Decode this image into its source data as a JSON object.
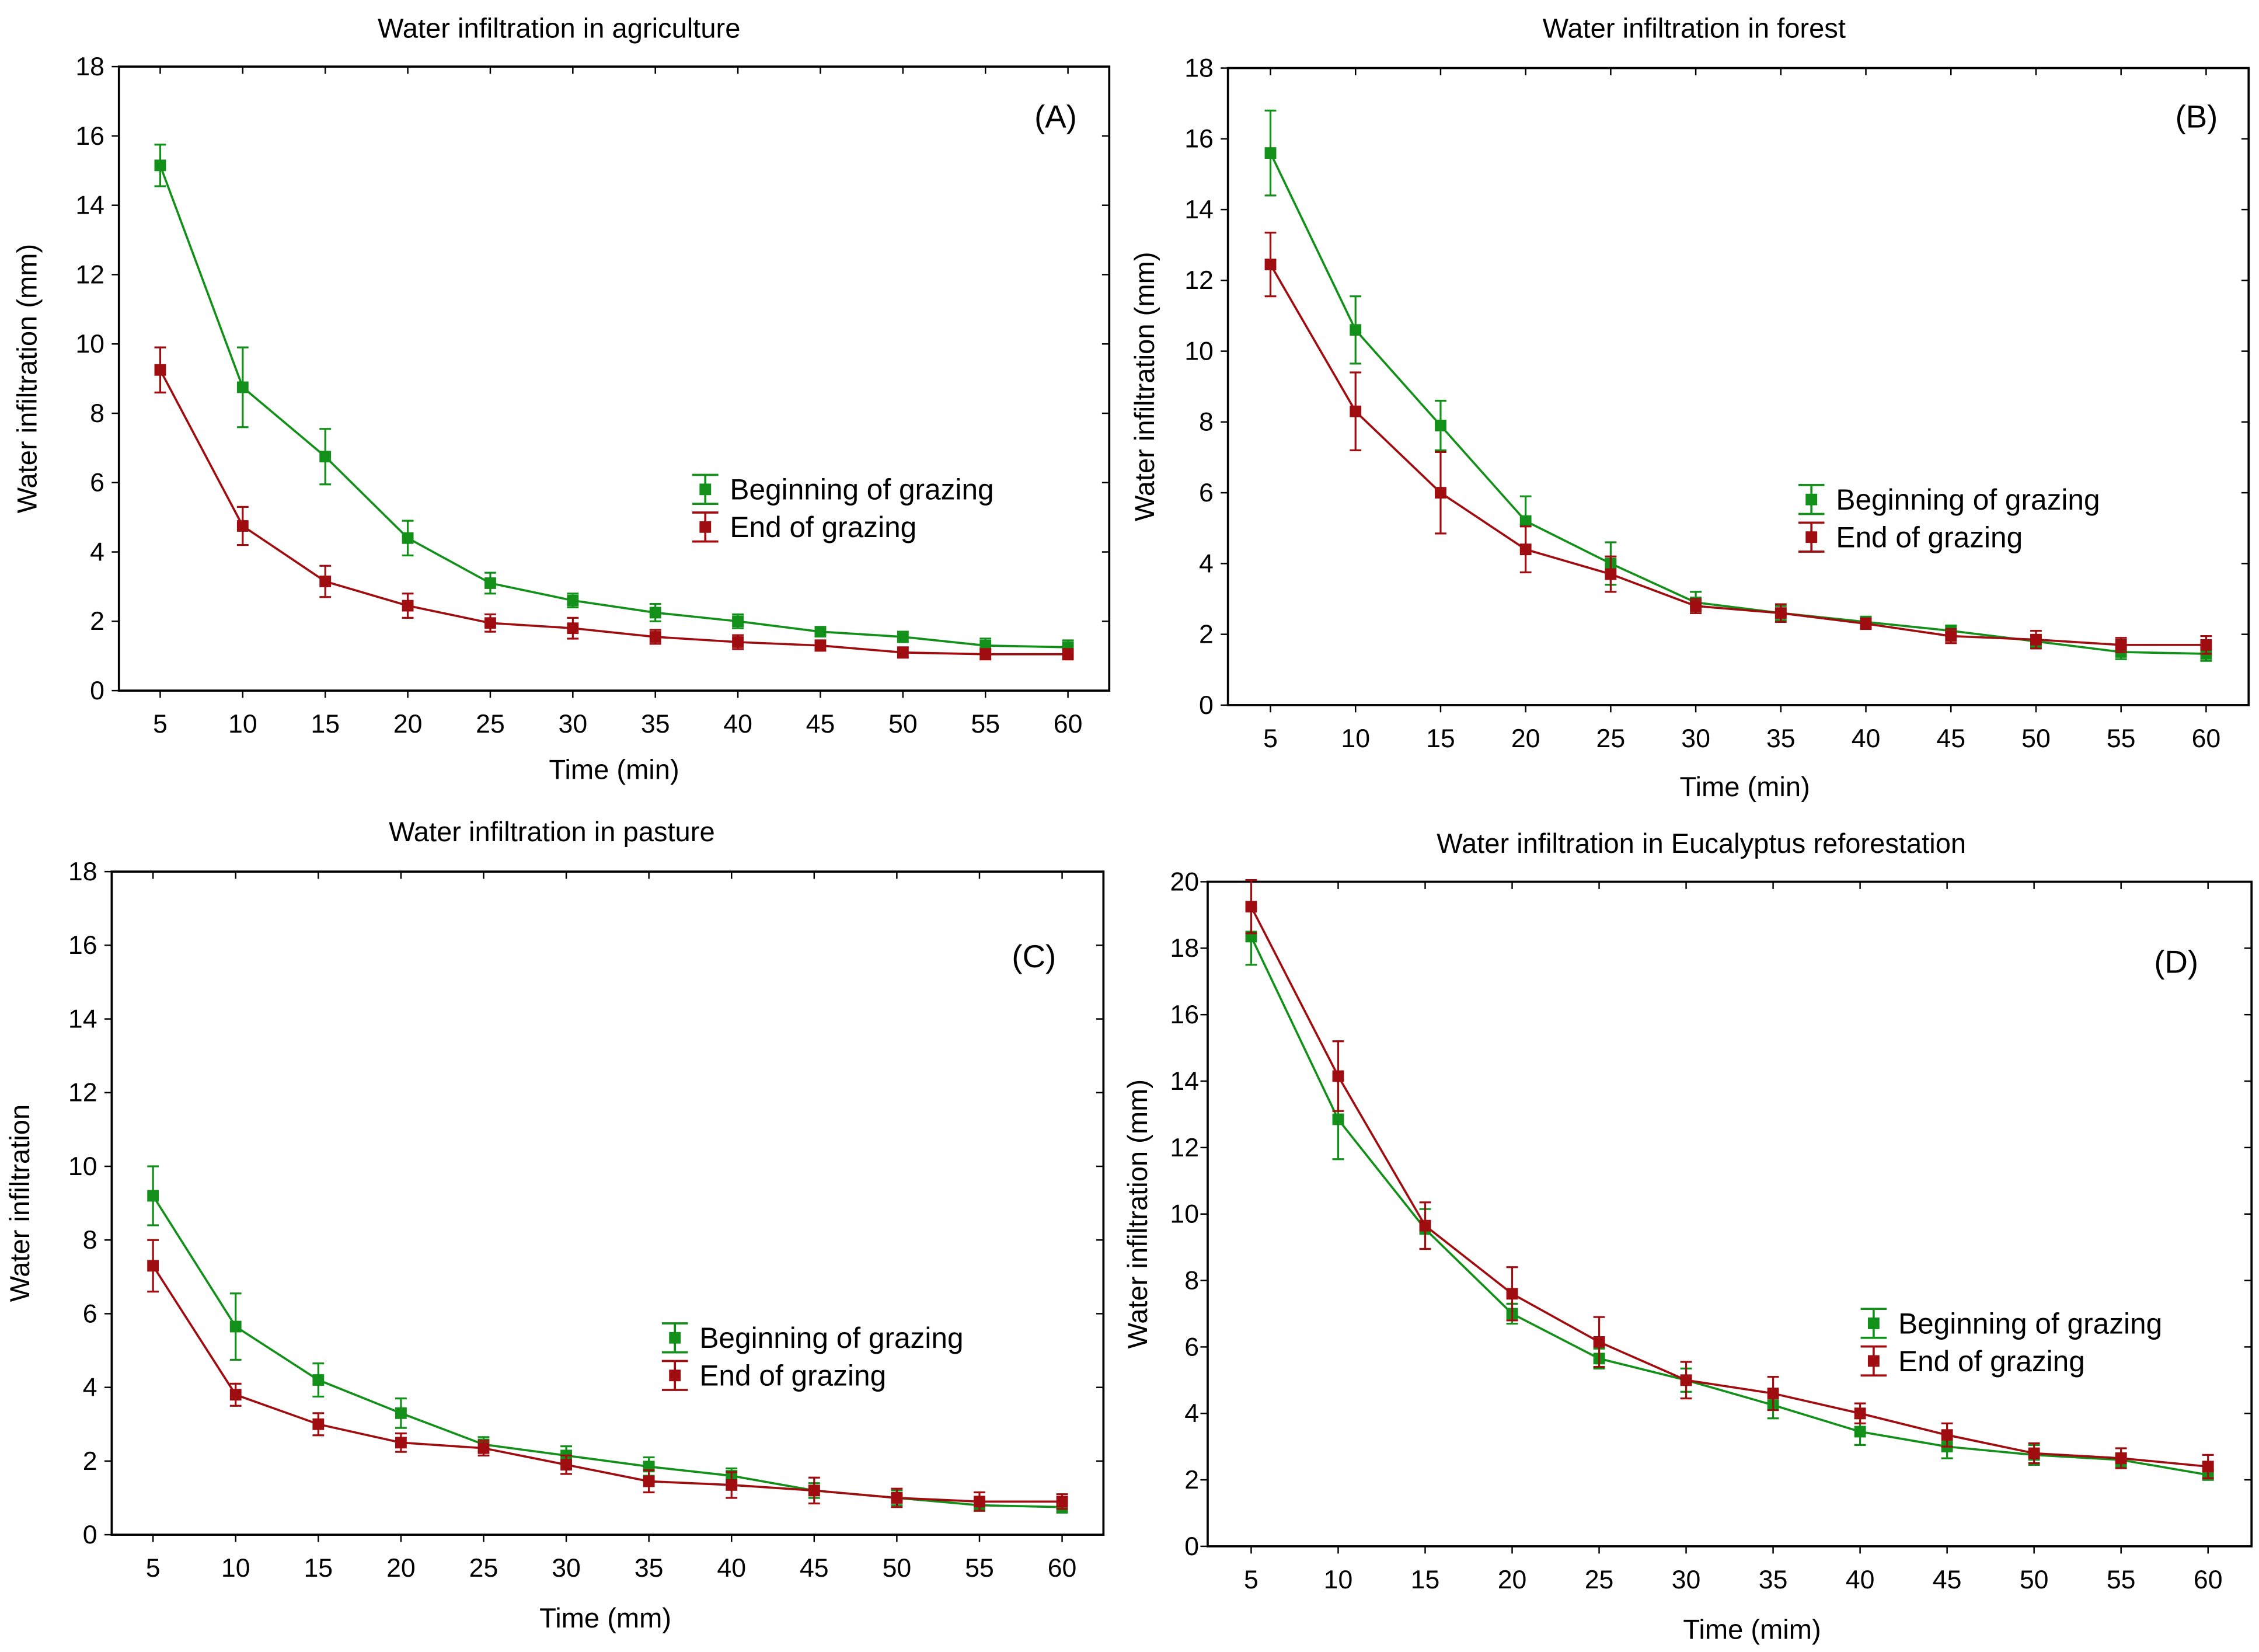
{
  "colors": {
    "beginning": "#12901a",
    "end": "#a00d10"
  },
  "chart_data": [
    {
      "type": "line",
      "title": "Water infiltration in agriculture",
      "panel_label": "(A)",
      "xlabel": "Time (min)",
      "ylabel": "Water infiltration (mm)",
      "categories": [
        "5",
        "10",
        "15",
        "20",
        "25",
        "30",
        "35",
        "40",
        "45",
        "50",
        "55",
        "60"
      ],
      "ylim": [
        0,
        18
      ],
      "yticks": [
        "0",
        "2",
        "4",
        "6",
        "8",
        "10",
        "12",
        "14",
        "16",
        "18"
      ],
      "grid": false,
      "legend_position": "center-right",
      "series": [
        {
          "name": "Beginning of grazing",
          "values": [
            15.15,
            8.75,
            6.75,
            4.4,
            3.1,
            2.6,
            2.25,
            2.0,
            1.7,
            1.55,
            1.3,
            1.25
          ],
          "errors": [
            0.6,
            1.15,
            0.8,
            0.5,
            0.3,
            0.2,
            0.25,
            0.2,
            0.1,
            0.15,
            0.2,
            0.2
          ]
        },
        {
          "name": "End of grazing",
          "values": [
            9.25,
            4.75,
            3.15,
            2.45,
            1.95,
            1.8,
            1.55,
            1.4,
            1.3,
            1.1,
            1.05,
            1.05
          ],
          "errors": [
            0.65,
            0.55,
            0.45,
            0.35,
            0.25,
            0.3,
            0.2,
            0.2,
            0.15,
            0.15,
            0.15,
            0.15
          ]
        }
      ]
    },
    {
      "type": "line",
      "title": "Water infiltration in forest",
      "panel_label": "(B)",
      "xlabel": "Time (min)",
      "ylabel": "Water infiltration (mm)",
      "categories": [
        "5",
        "10",
        "15",
        "20",
        "25",
        "30",
        "35",
        "40",
        "45",
        "50",
        "55",
        "60"
      ],
      "ylim": [
        0,
        18
      ],
      "yticks": [
        "0",
        "2",
        "4",
        "6",
        "8",
        "10",
        "12",
        "14",
        "16",
        "18"
      ],
      "grid": false,
      "legend_position": "center-right",
      "series": [
        {
          "name": "Beginning of grazing",
          "values": [
            15.6,
            10.6,
            7.9,
            5.2,
            4.0,
            2.9,
            2.6,
            2.35,
            2.1,
            1.8,
            1.5,
            1.45
          ],
          "errors": [
            1.2,
            0.95,
            0.7,
            0.7,
            0.6,
            0.3,
            0.2,
            0.15,
            0.15,
            0.15,
            0.2,
            0.2
          ]
        },
        {
          "name": "End of grazing",
          "values": [
            12.45,
            8.3,
            6.0,
            4.4,
            3.7,
            2.8,
            2.6,
            2.3,
            1.95,
            1.85,
            1.7,
            1.7
          ],
          "errors": [
            0.9,
            1.1,
            1.15,
            0.65,
            0.5,
            0.2,
            0.25,
            0.15,
            0.2,
            0.25,
            0.2,
            0.25
          ]
        }
      ]
    },
    {
      "type": "line",
      "title": "Water infiltration in pasture",
      "panel_label": "(C)",
      "xlabel": "Time (mm)",
      "ylabel": "Water infiltration",
      "categories": [
        "5",
        "10",
        "15",
        "20",
        "25",
        "30",
        "35",
        "40",
        "45",
        "50",
        "55",
        "60"
      ],
      "ylim": [
        0,
        18
      ],
      "yticks": [
        "0",
        "2",
        "4",
        "6",
        "8",
        "10",
        "12",
        "14",
        "16",
        "18"
      ],
      "grid": false,
      "legend_position": "center-right",
      "series": [
        {
          "name": "Beginning of grazing",
          "values": [
            9.2,
            5.65,
            4.2,
            3.3,
            2.45,
            2.15,
            1.85,
            1.6,
            1.2,
            1.0,
            0.8,
            0.75
          ],
          "errors": [
            0.8,
            0.9,
            0.45,
            0.4,
            0.2,
            0.25,
            0.25,
            0.2,
            0.2,
            0.2,
            0.15,
            0.15
          ]
        },
        {
          "name": "End of grazing",
          "values": [
            7.3,
            3.8,
            3.0,
            2.5,
            2.35,
            1.9,
            1.45,
            1.35,
            1.2,
            1.0,
            0.9,
            0.9
          ],
          "errors": [
            0.7,
            0.3,
            0.3,
            0.25,
            0.2,
            0.25,
            0.3,
            0.35,
            0.35,
            0.25,
            0.25,
            0.2
          ]
        }
      ]
    },
    {
      "type": "line",
      "title": "Water infiltration in Eucalyptus reforestation",
      "panel_label": "(D)",
      "xlabel": "Time (mim)",
      "ylabel": "Water infiltration (mm)",
      "categories": [
        "5",
        "10",
        "15",
        "20",
        "25",
        "30",
        "35",
        "40",
        "45",
        "50",
        "55",
        "60"
      ],
      "ylim": [
        0,
        20
      ],
      "yticks": [
        "0",
        "2",
        "4",
        "6",
        "8",
        "10",
        "12",
        "14",
        "16",
        "18",
        "20"
      ],
      "grid": false,
      "legend_position": "center-right",
      "series": [
        {
          "name": "Beginning of grazing",
          "values": [
            18.35,
            12.85,
            9.55,
            7.0,
            5.65,
            5.0,
            4.25,
            3.45,
            3.0,
            2.75,
            2.6,
            2.15
          ],
          "errors": [
            0.85,
            1.2,
            0.6,
            0.3,
            0.3,
            0.35,
            0.4,
            0.4,
            0.35,
            0.3,
            0.2,
            0.15
          ]
        },
        {
          "name": "End of grazing",
          "values": [
            19.25,
            14.15,
            9.65,
            7.6,
            6.15,
            5.0,
            4.6,
            4.0,
            3.35,
            2.8,
            2.65,
            2.4
          ],
          "errors": [
            0.8,
            1.05,
            0.7,
            0.8,
            0.75,
            0.55,
            0.5,
            0.3,
            0.35,
            0.3,
            0.3,
            0.35
          ]
        }
      ]
    }
  ]
}
